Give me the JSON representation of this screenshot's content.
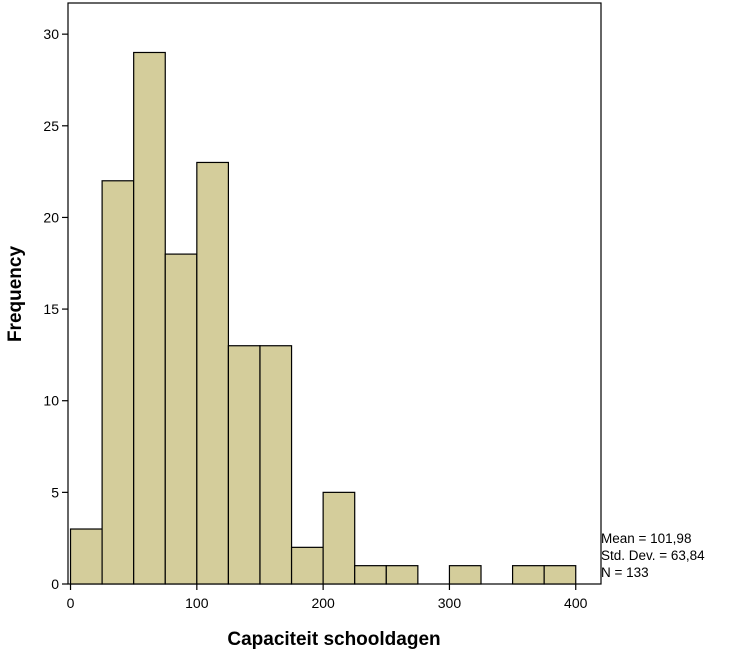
{
  "chart_data": {
    "type": "bar",
    "subtype": "histogram",
    "xlabel": "Capaciteit schooldagen",
    "ylabel": "Frequency",
    "bin_width": 25,
    "bins": [
      {
        "start": 0,
        "end": 25,
        "value": 3
      },
      {
        "start": 25,
        "end": 50,
        "value": 22
      },
      {
        "start": 50,
        "end": 75,
        "value": 29
      },
      {
        "start": 75,
        "end": 100,
        "value": 18
      },
      {
        "start": 100,
        "end": 125,
        "value": 23
      },
      {
        "start": 125,
        "end": 150,
        "value": 13
      },
      {
        "start": 150,
        "end": 175,
        "value": 13
      },
      {
        "start": 175,
        "end": 200,
        "value": 2
      },
      {
        "start": 200,
        "end": 225,
        "value": 5
      },
      {
        "start": 225,
        "end": 250,
        "value": 1
      },
      {
        "start": 250,
        "end": 275,
        "value": 1
      },
      {
        "start": 275,
        "end": 300,
        "value": 0
      },
      {
        "start": 300,
        "end": 325,
        "value": 1
      },
      {
        "start": 325,
        "end": 350,
        "value": 0
      },
      {
        "start": 350,
        "end": 375,
        "value": 1
      },
      {
        "start": 375,
        "end": 400,
        "value": 1
      }
    ],
    "xlim": [
      -2,
      420
    ],
    "ylim": [
      0,
      31.7
    ],
    "x_ticks": [
      0,
      100,
      200,
      300,
      400
    ],
    "x_tick_labels": [
      "0",
      "100",
      "200",
      "300",
      "400"
    ],
    "y_ticks": [
      0,
      5,
      10,
      15,
      20,
      25,
      30
    ],
    "y_tick_labels": [
      "0",
      "5",
      "10",
      "15",
      "20",
      "25",
      "30"
    ],
    "grid": false,
    "stats": [
      "Mean = 101,98",
      "Std. Dev. = 63,84",
      "N = 133"
    ],
    "colors": {
      "bar_fill": "#d4cd9b",
      "bar_stroke": "#000000",
      "background": "#ffffff"
    }
  }
}
